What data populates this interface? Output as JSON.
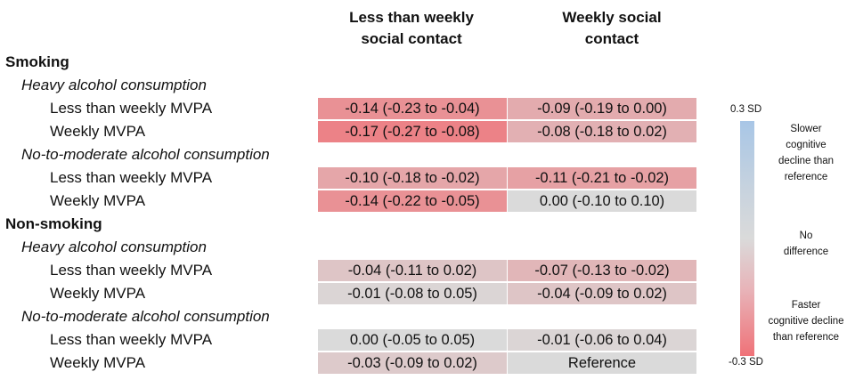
{
  "chart_data": {
    "type": "table",
    "title": "",
    "columns": [
      "Less than weekly social contact",
      "Weekly social contact"
    ],
    "column_headers": [
      {
        "line1": "Less than weekly",
        "line2": "social contact"
      },
      {
        "line1": "Weekly social",
        "line2": "contact"
      }
    ],
    "groups": [
      {
        "label": "Smoking",
        "subgroups": [
          {
            "label": "Heavy alcohol consumption",
            "rows": [
              {
                "label": "Less than weekly MVPA",
                "values": [
                  -0.14,
                  -0.09
                ],
                "cells": [
                  "-0.14 (-0.23 to -0.04)",
                  "-0.09 (-0.19 to 0.00)"
                ]
              },
              {
                "label": "Weekly MVPA",
                "values": [
                  -0.17,
                  -0.08
                ],
                "cells": [
                  "-0.17 (-0.27 to -0.08)",
                  "-0.08 (-0.18 to 0.02)"
                ]
              }
            ]
          },
          {
            "label": "No-to-moderate alcohol consumption",
            "rows": [
              {
                "label": "Less than weekly MVPA",
                "values": [
                  -0.1,
                  -0.11
                ],
                "cells": [
                  "-0.10 (-0.18 to -0.02)",
                  "-0.11 (-0.21 to -0.02)"
                ]
              },
              {
                "label": "Weekly MVPA",
                "values": [
                  -0.14,
                  0.0
                ],
                "cells": [
                  "-0.14 (-0.22 to -0.05)",
                  "0.00 (-0.10 to 0.10)"
                ]
              }
            ]
          }
        ]
      },
      {
        "label": "Non-smoking",
        "subgroups": [
          {
            "label": "Heavy alcohol consumption",
            "rows": [
              {
                "label": "Less than weekly MVPA",
                "values": [
                  -0.04,
                  -0.07
                ],
                "cells": [
                  "-0.04 (-0.11 to 0.02)",
                  "-0.07 (-0.13 to -0.02)"
                ]
              },
              {
                "label": "Weekly MVPA",
                "values": [
                  -0.01,
                  -0.04
                ],
                "cells": [
                  "-0.01 (-0.08 to 0.05)",
                  "-0.04 (-0.09 to 0.02)"
                ]
              }
            ]
          },
          {
            "label": "No-to-moderate alcohol consumption",
            "rows": [
              {
                "label": "Less than weekly MVPA",
                "values": [
                  0.0,
                  -0.01
                ],
                "cells": [
                  "0.00 (-0.05 to 0.05)",
                  "-0.01 (-0.06 to 0.04)"
                ]
              },
              {
                "label": "Weekly MVPA",
                "values": [
                  -0.03,
                  0.0
                ],
                "cells": [
                  "-0.03 (-0.09 to 0.02)",
                  "Reference"
                ]
              }
            ]
          }
        ]
      }
    ],
    "color_scale": {
      "range": [
        -0.3,
        0.3
      ],
      "top_label": "0.3 SD",
      "bottom_label": "-0.3 SD",
      "high_text": [
        "Slower",
        "cognitive",
        "decline than",
        "reference"
      ],
      "mid_text": [
        "No",
        "difference"
      ],
      "low_text": [
        "Faster",
        "cognitive decline",
        "than reference"
      ],
      "colors": {
        "positive": "#a8c6e6",
        "neutral": "#dadada",
        "negative": "#ef7278"
      }
    }
  }
}
